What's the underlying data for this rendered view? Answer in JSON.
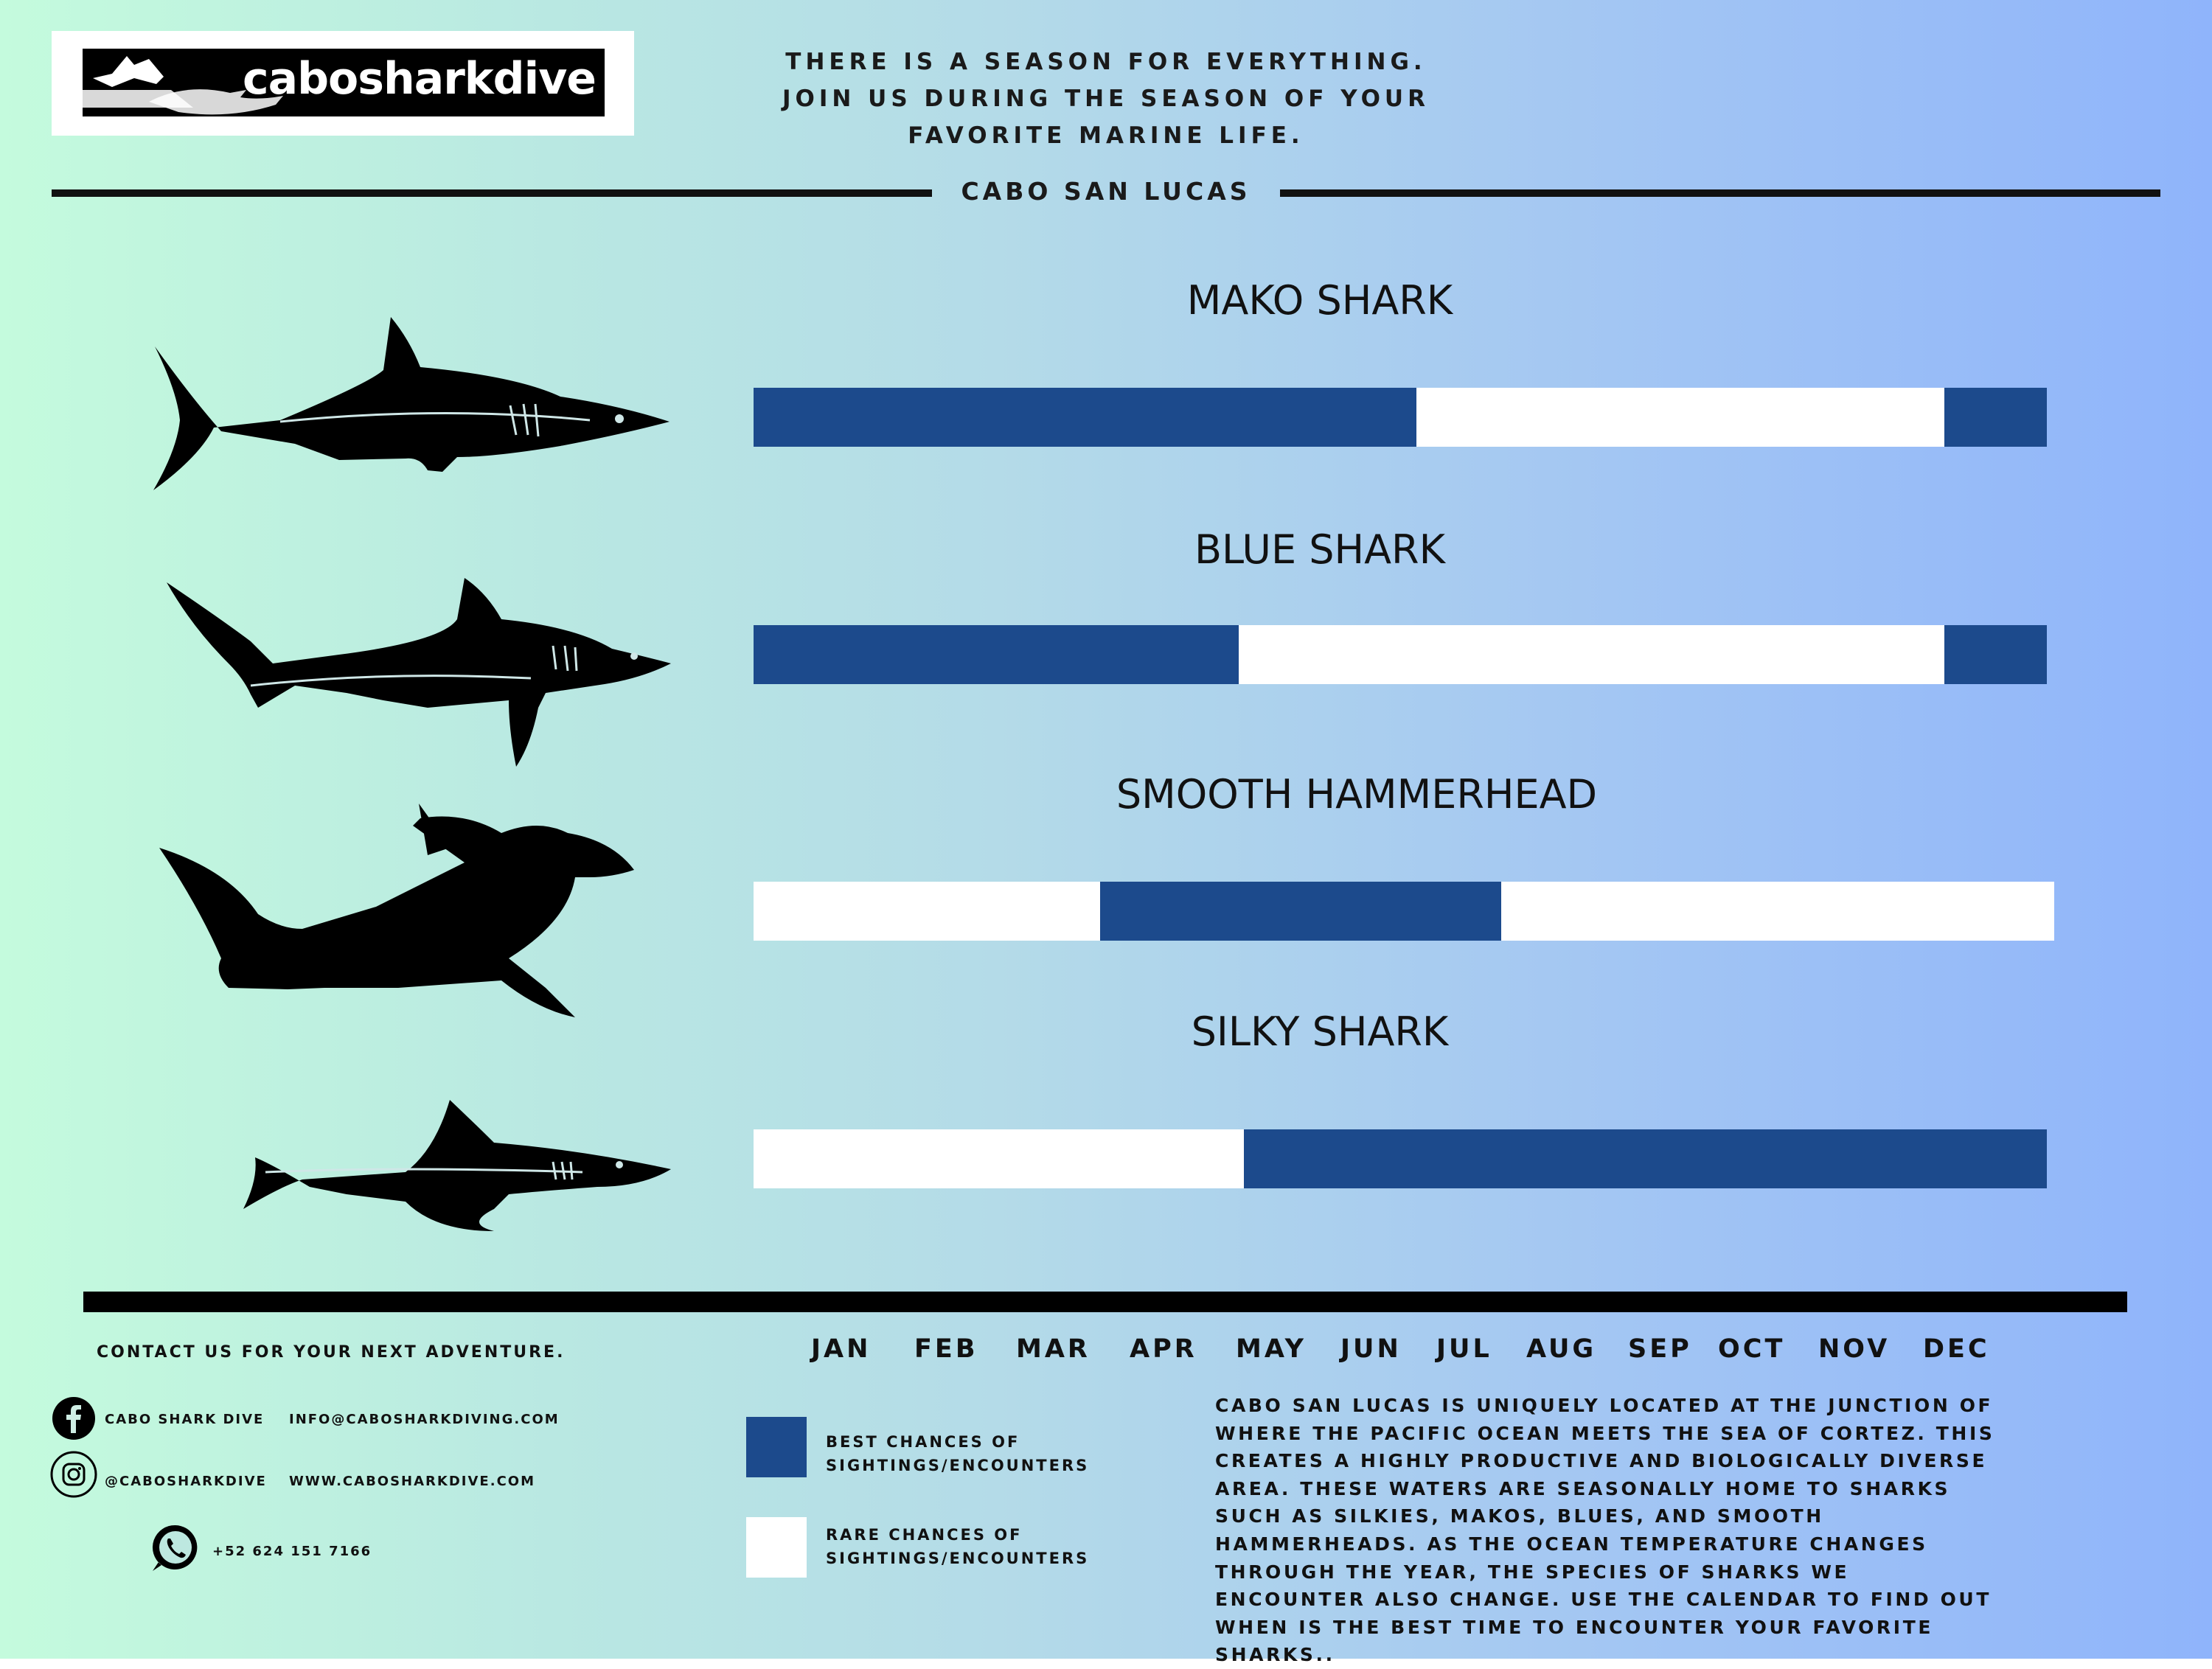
{
  "brand": {
    "logo_text": "cabosharkdive"
  },
  "header": {
    "tagline_lines": [
      "THERE IS A SEASON FOR EVERYTHING.",
      "JOIN US DURING THE SEASON OF YOUR",
      "FAVORITE MARINE LIFE."
    ],
    "location": "CABO SAN LUCAS"
  },
  "colors": {
    "best": "#1c4a8c",
    "rare": "#ffffff"
  },
  "months": [
    "JAN",
    "FEB",
    "MAR",
    "APR",
    "MAY",
    "JUN",
    "JUL",
    "AUG",
    "SEP",
    "OCT",
    "NOV",
    "DEC"
  ],
  "species": [
    {
      "name": "MAKO SHARK",
      "icon": "mako-shark-silhouette",
      "best_seasons": [
        [
          0,
          6.15
        ],
        [
          11.05,
          12
        ]
      ]
    },
    {
      "name": "BLUE SHARK",
      "icon": "blue-shark-silhouette",
      "best_seasons": [
        [
          0,
          4.5
        ],
        [
          11.05,
          12
        ]
      ]
    },
    {
      "name": "SMOOTH HAMMERHEAD",
      "icon": "hammerhead-silhouette",
      "best_seasons": [
        [
          3.2,
          6.9
        ]
      ]
    },
    {
      "name": "SILKY SHARK",
      "icon": "silky-shark-silhouette",
      "best_seasons": [
        [
          4.55,
          12
        ]
      ]
    }
  ],
  "legend": {
    "best": "BEST CHANCES OF SIGHTINGS/ENCOUNTERS",
    "rare": "RARE  CHANCES OF SIGHTINGS/ENCOUNTERS"
  },
  "contact": {
    "heading": "CONTACT US FOR YOUR NEXT ADVENTURE.",
    "facebook": "CABO SHARK DIVE",
    "email": "INFO@CABOSHARKDIVING.COM",
    "instagram": "@CABOSHARKDIVE",
    "website": "WWW.CABOSHARKDIVE.COM",
    "phone": "+52 624 151 7166"
  },
  "description": "CABO SAN LUCAS IS UNIQUELY LOCATED AT THE JUNCTION OF WHERE THE PACIFIC OCEAN MEETS THE SEA OF CORTEZ. THIS CREATES A HIGHLY PRODUCTIVE AND BIOLOGICALLY DIVERSE AREA. THESE WATERS ARE SEASONALLY HOME TO SHARKS SUCH AS SILKIES, MAKOS, BLUES, AND SMOOTH HAMMERHEADS. AS THE OCEAN TEMPERATURE CHANGES THROUGH THE YEAR, THE SPECIES OF SHARKS WE ENCOUNTER ALSO CHANGE. USE THE CALENDAR TO FIND OUT WHEN IS THE BEST TIME TO ENCOUNTER YOUR FAVORITE SHARKS.."
}
